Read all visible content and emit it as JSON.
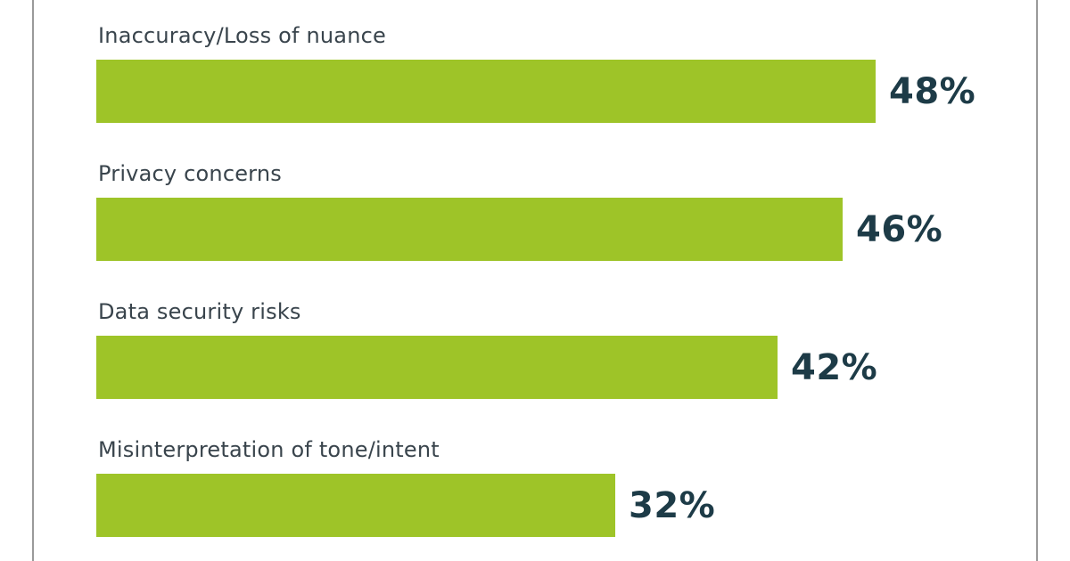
{
  "chart_data": {
    "type": "bar",
    "orientation": "horizontal",
    "title": "",
    "xlabel": "",
    "ylabel": "",
    "categories": [
      "Inaccuracy/Loss of nuance",
      "Privacy concerns",
      "Data security risks",
      "Misinterpretation of tone/intent"
    ],
    "values": [
      48,
      46,
      42,
      32
    ],
    "value_labels": [
      "48%",
      "46%",
      "42%",
      "32%"
    ],
    "xlim": [
      0,
      57.5
    ],
    "grid": false,
    "legend": "none",
    "bar_color": "#9EC428",
    "value_label_color": "#1D3B47",
    "category_label_color": "#39444C",
    "frame_border_color": "#9A9A9A",
    "background_color": "#FFFFFF"
  }
}
